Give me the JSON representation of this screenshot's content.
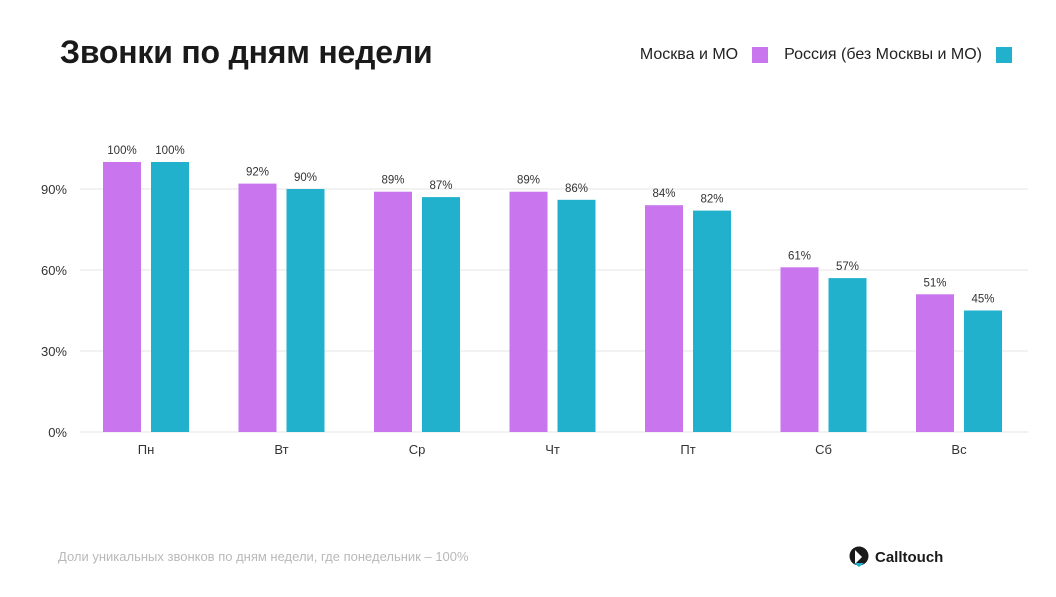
{
  "title": "Звонки по дням недели",
  "legend": [
    {
      "label": "Москва и МО",
      "color": "#c875ee"
    },
    {
      "label": "Россия (без Москвы и МО)",
      "color": "#22b1cc"
    }
  ],
  "footer": {
    "note": "Доли уникальных звонков по дням недели, где понедельник – 100%",
    "brand": "Calltouch"
  },
  "chart_data": {
    "type": "bar",
    "categories": [
      "Пн",
      "Вт",
      "Ср",
      "Чт",
      "Пт",
      "Сб",
      "Вс"
    ],
    "series": [
      {
        "name": "Москва и МО",
        "values": [
          100,
          92,
          89,
          89,
          84,
          61,
          51
        ],
        "labels": [
          "100%",
          "92%",
          "89%",
          "89%",
          "84%",
          "61%",
          "51%"
        ],
        "color": "#c875ee"
      },
      {
        "name": "Россия (без Москвы и МО)",
        "values": [
          100,
          90,
          87,
          86,
          82,
          57,
          45
        ],
        "labels": [
          "100%",
          "90%",
          "87%",
          "86%",
          "82%",
          "57%",
          "45%"
        ],
        "color": "#22b1cc"
      }
    ],
    "yticks": [
      0,
      30,
      60,
      90
    ],
    "ytick_labels": [
      "0%",
      "30%",
      "60%",
      "90%"
    ],
    "ylim": [
      0,
      100
    ],
    "grid": true,
    "legend_position": "top-right"
  }
}
